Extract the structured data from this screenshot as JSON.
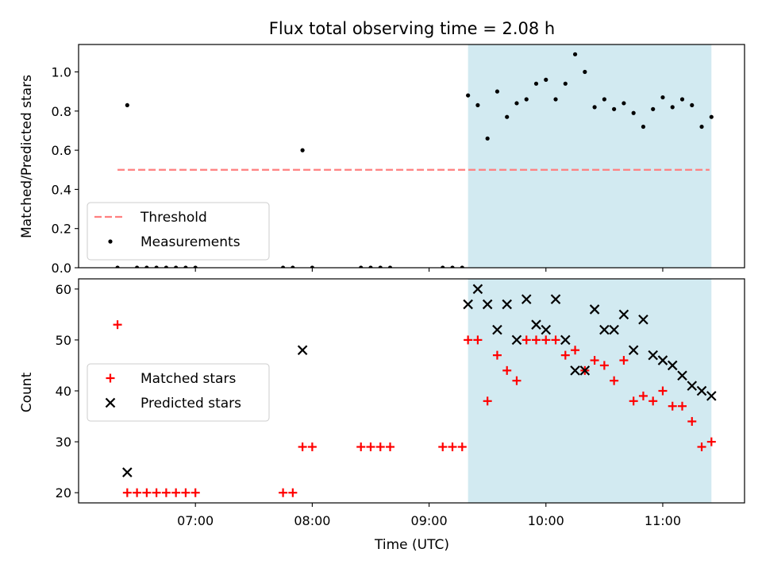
{
  "title": "Flux total observing time = 2.08 h",
  "colors": {
    "shade": "#add8e6",
    "threshold": "#ff7f7f",
    "matched": "#ff0000",
    "predicted": "#000000"
  },
  "chart_data": [
    {
      "type": "scatter",
      "ylabel": "Matched/Predicted stars",
      "xlabel": "",
      "ylim": [
        0,
        1.14
      ],
      "yticks": [
        "0.0",
        "0.2",
        "0.4",
        "0.6",
        "0.8",
        "1.0"
      ],
      "legend_position": "lower-left",
      "shaded_region": {
        "x": [
          "09:20",
          "11:25"
        ]
      },
      "threshold": {
        "name": "Threshold",
        "y": 0.5,
        "x": [
          "06:20",
          "11:24"
        ]
      },
      "series": [
        {
          "name": "Measurements",
          "marker": "dot",
          "points": [
            [
              "06:20",
              0.0
            ],
            [
              "06:25",
              0.83
            ],
            [
              "06:30",
              0.0
            ],
            [
              "06:35",
              0.0
            ],
            [
              "06:40",
              0.0
            ],
            [
              "06:45",
              0.0
            ],
            [
              "06:50",
              0.0
            ],
            [
              "06:55",
              0.0
            ],
            [
              "07:00",
              0.0
            ],
            [
              "07:45",
              0.0
            ],
            [
              "07:50",
              0.0
            ],
            [
              "07:55",
              0.6
            ],
            [
              "08:00",
              0.0
            ],
            [
              "08:25",
              0.0
            ],
            [
              "08:30",
              0.0
            ],
            [
              "08:35",
              0.0
            ],
            [
              "08:40",
              0.0
            ],
            [
              "09:07",
              0.0
            ],
            [
              "09:12",
              0.0
            ],
            [
              "09:17",
              0.0
            ],
            [
              "09:20",
              0.88
            ],
            [
              "09:25",
              0.83
            ],
            [
              "09:30",
              0.66
            ],
            [
              "09:35",
              0.9
            ],
            [
              "09:40",
              0.77
            ],
            [
              "09:45",
              0.84
            ],
            [
              "09:50",
              0.86
            ],
            [
              "09:55",
              0.94
            ],
            [
              "10:00",
              0.96
            ],
            [
              "10:05",
              0.86
            ],
            [
              "10:10",
              0.94
            ],
            [
              "10:15",
              1.09
            ],
            [
              "10:20",
              1.0
            ],
            [
              "10:25",
              0.82
            ],
            [
              "10:30",
              0.86
            ],
            [
              "10:35",
              0.81
            ],
            [
              "10:40",
              0.84
            ],
            [
              "10:45",
              0.79
            ],
            [
              "10:50",
              0.72
            ],
            [
              "10:55",
              0.81
            ],
            [
              "11:00",
              0.87
            ],
            [
              "11:05",
              0.82
            ],
            [
              "11:10",
              0.86
            ],
            [
              "11:15",
              0.83
            ],
            [
              "11:20",
              0.72
            ],
            [
              "11:25",
              0.77
            ]
          ]
        }
      ]
    },
    {
      "type": "scatter",
      "ylabel": "Count",
      "xlabel": "Time (UTC)",
      "ylim": [
        18,
        62
      ],
      "yticks": [
        "20",
        "30",
        "40",
        "50",
        "60"
      ],
      "xticks": [
        "07:00",
        "08:00",
        "09:00",
        "10:00",
        "11:00"
      ],
      "legend_position": "center-left",
      "shaded_region": {
        "x": [
          "09:20",
          "11:25"
        ]
      },
      "series": [
        {
          "name": "Matched stars",
          "marker": "plus",
          "points": [
            [
              "06:20",
              53
            ],
            [
              "06:25",
              20
            ],
            [
              "06:30",
              20
            ],
            [
              "06:35",
              20
            ],
            [
              "06:40",
              20
            ],
            [
              "06:45",
              20
            ],
            [
              "06:50",
              20
            ],
            [
              "06:55",
              20
            ],
            [
              "07:00",
              20
            ],
            [
              "07:45",
              20
            ],
            [
              "07:50",
              20
            ],
            [
              "07:55",
              29
            ],
            [
              "08:00",
              29
            ],
            [
              "08:25",
              29
            ],
            [
              "08:30",
              29
            ],
            [
              "08:35",
              29
            ],
            [
              "08:40",
              29
            ],
            [
              "09:07",
              29
            ],
            [
              "09:12",
              29
            ],
            [
              "09:17",
              29
            ],
            [
              "09:20",
              50
            ],
            [
              "09:25",
              50
            ],
            [
              "09:30",
              38
            ],
            [
              "09:35",
              47
            ],
            [
              "09:40",
              44
            ],
            [
              "09:45",
              42
            ],
            [
              "09:50",
              50
            ],
            [
              "09:55",
              50
            ],
            [
              "10:00",
              50
            ],
            [
              "10:05",
              50
            ],
            [
              "10:10",
              47
            ],
            [
              "10:15",
              48
            ],
            [
              "10:20",
              44
            ],
            [
              "10:25",
              46
            ],
            [
              "10:30",
              45
            ],
            [
              "10:35",
              42
            ],
            [
              "10:40",
              46
            ],
            [
              "10:45",
              38
            ],
            [
              "10:50",
              39
            ],
            [
              "10:55",
              38
            ],
            [
              "11:00",
              40
            ],
            [
              "11:05",
              37
            ],
            [
              "11:10",
              37
            ],
            [
              "11:15",
              34
            ],
            [
              "11:20",
              29
            ],
            [
              "11:25",
              30
            ]
          ]
        },
        {
          "name": "Predicted stars",
          "marker": "x",
          "points": [
            [
              "06:25",
              24
            ],
            [
              "07:55",
              48
            ],
            [
              "09:20",
              57
            ],
            [
              "09:25",
              60
            ],
            [
              "09:30",
              57
            ],
            [
              "09:35",
              52
            ],
            [
              "09:40",
              57
            ],
            [
              "09:45",
              50
            ],
            [
              "09:50",
              58
            ],
            [
              "09:55",
              53
            ],
            [
              "10:00",
              52
            ],
            [
              "10:05",
              58
            ],
            [
              "10:10",
              50
            ],
            [
              "10:15",
              44
            ],
            [
              "10:20",
              44
            ],
            [
              "10:25",
              56
            ],
            [
              "10:30",
              52
            ],
            [
              "10:35",
              52
            ],
            [
              "10:40",
              55
            ],
            [
              "10:45",
              48
            ],
            [
              "10:50",
              54
            ],
            [
              "10:55",
              47
            ],
            [
              "11:00",
              46
            ],
            [
              "11:05",
              45
            ],
            [
              "11:10",
              43
            ],
            [
              "11:15",
              41
            ],
            [
              "11:20",
              40
            ],
            [
              "11:25",
              39
            ]
          ]
        }
      ]
    }
  ]
}
